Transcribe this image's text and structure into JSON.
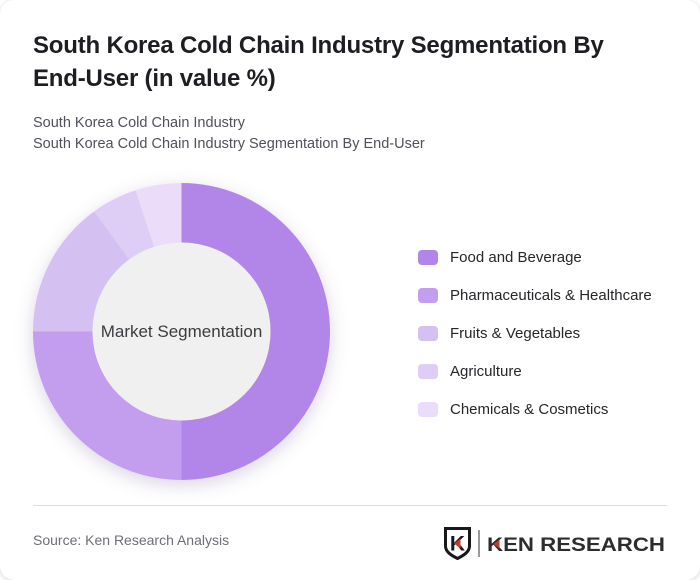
{
  "header": {
    "title": "South Korea Cold Chain Industry Segmentation By End-User (in value %)",
    "subtitle1": "South Korea Cold Chain Industry",
    "subtitle2": "South Korea Cold Chain Industry Segmentation By End-User"
  },
  "chart_data": {
    "type": "pie",
    "style": "donut",
    "title": "South Korea Cold Chain Industry Segmentation By End-User (in value %)",
    "units": "value %",
    "center_label": "Market Segmentation",
    "hole_color": "#f0f0f0",
    "start_angle_deg": 0,
    "direction": "clockwise",
    "legend_position": "right",
    "series": [
      {
        "name": "Food and Beverage",
        "value": 50,
        "color": "#b286e8"
      },
      {
        "name": "Pharmaceuticals & Healthcare",
        "value": 25,
        "color": "#c39dee"
      },
      {
        "name": "Fruits & Vegetables",
        "value": 15,
        "color": "#d5c0f2"
      },
      {
        "name": "Agriculture",
        "value": 5,
        "color": "#decef6"
      },
      {
        "name": "Chemicals & Cosmetics",
        "value": 5,
        "color": "#ebddf9"
      }
    ]
  },
  "footer": {
    "source": "Source: Ken Research Analysis",
    "logo": {
      "monogram": "K",
      "text": "KEN RESEARCH",
      "accent_color": "#c23b2e",
      "ink_color": "#1a1a1c"
    }
  }
}
